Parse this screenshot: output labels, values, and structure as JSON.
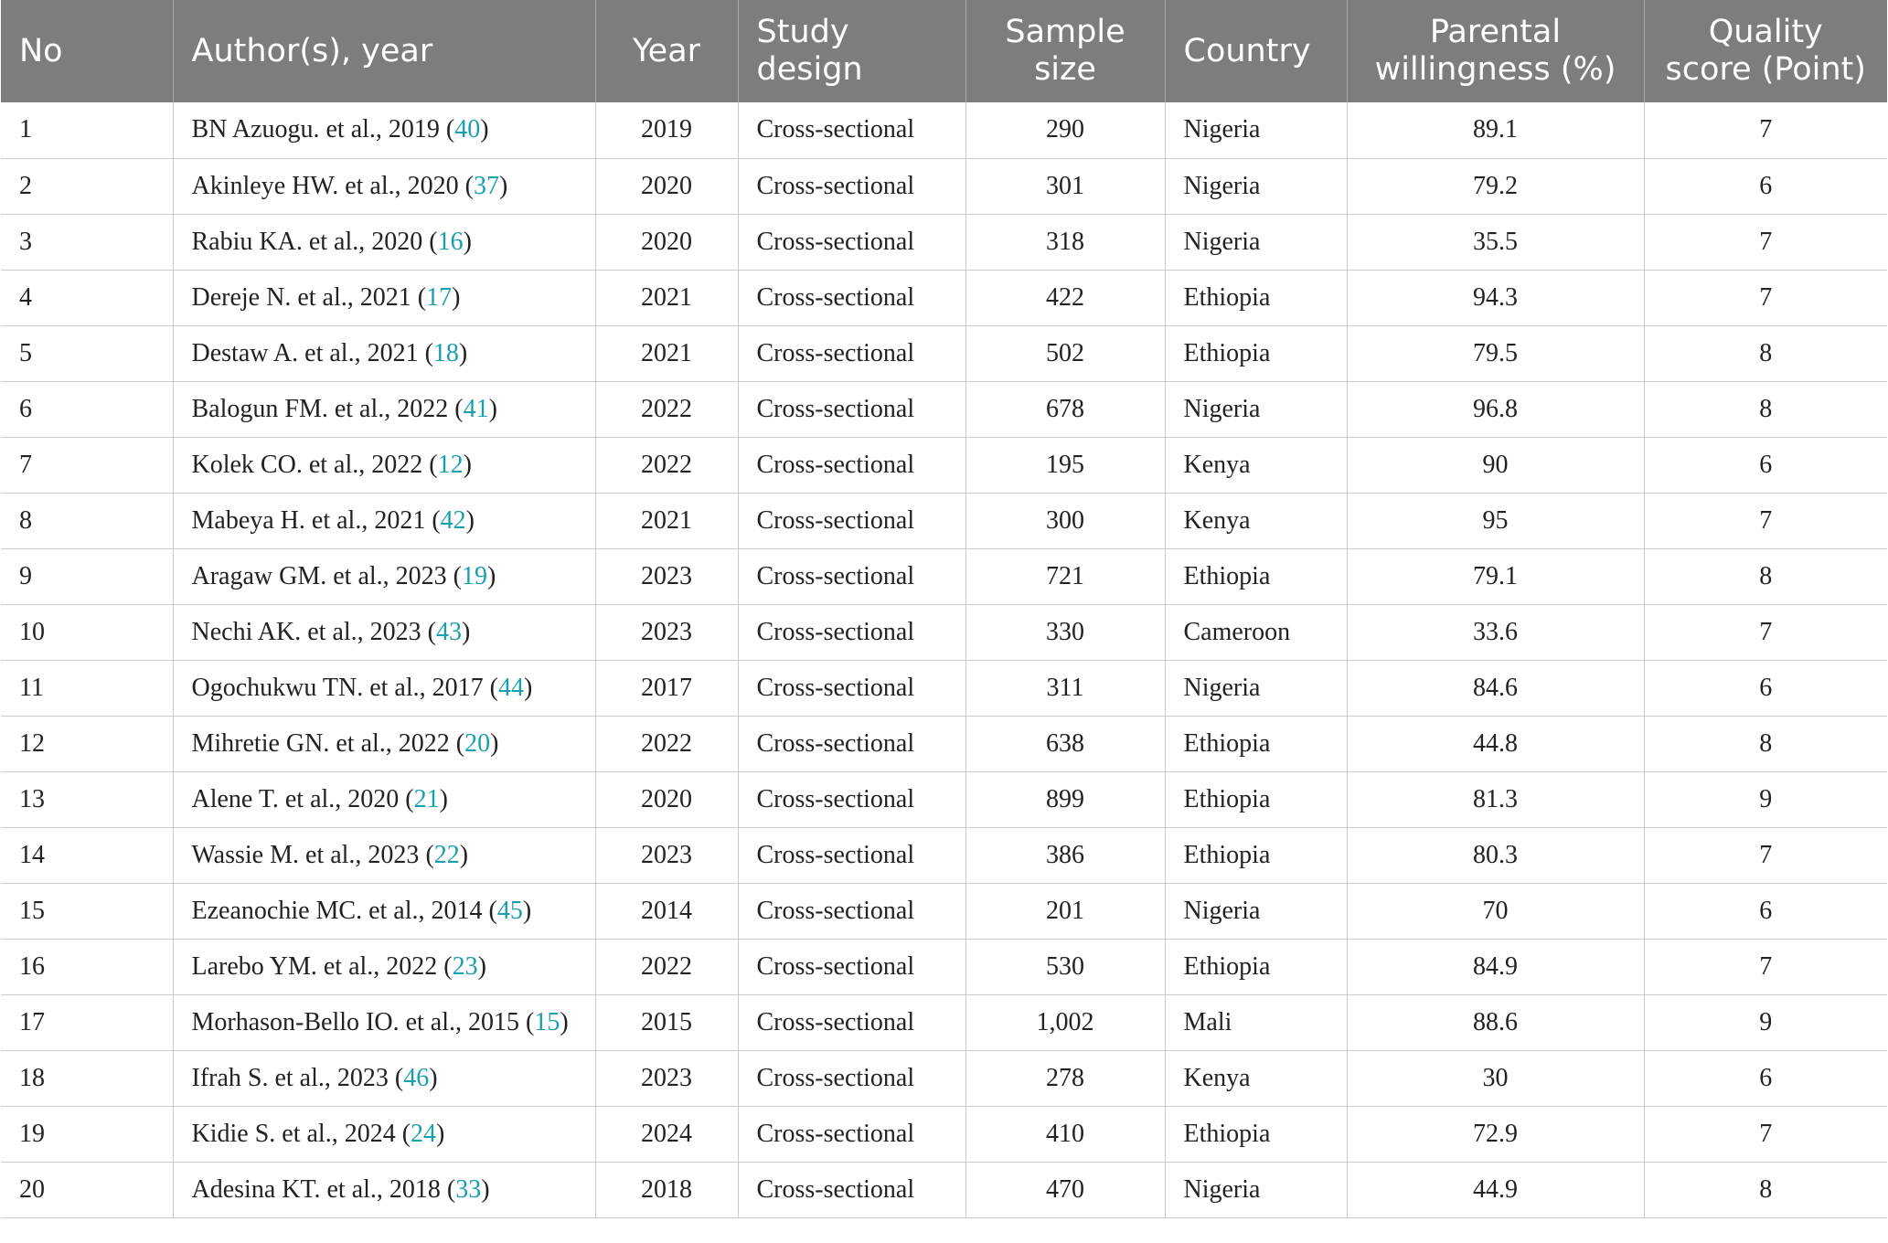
{
  "headers": {
    "no": "No",
    "author": "Author(s), year",
    "year": "Year",
    "design": [
      "Study",
      "design"
    ],
    "sample": [
      "Sample",
      "size"
    ],
    "country": "Country",
    "willingness": [
      "Parental",
      "willingness (%)"
    ],
    "quality": [
      "Quality",
      "score (Point)"
    ]
  },
  "rows": [
    {
      "no": "1",
      "author": "BN Azuogu. et al., 2019",
      "ref": "40",
      "year": "2019",
      "design": "Cross-sectional",
      "sample": "290",
      "country": "Nigeria",
      "willingness": "89.1",
      "quality": "7"
    },
    {
      "no": "2",
      "author": "Akinleye HW. et al., 2020",
      "ref": "37",
      "year": "2020",
      "design": "Cross-sectional",
      "sample": "301",
      "country": "Nigeria",
      "willingness": "79.2",
      "quality": "6"
    },
    {
      "no": "3",
      "author": "Rabiu KA. et al., 2020",
      "ref": "16",
      "year": "2020",
      "design": "Cross-sectional",
      "sample": "318",
      "country": "Nigeria",
      "willingness": "35.5",
      "quality": "7"
    },
    {
      "no": "4",
      "author": "Dereje N. et al., 2021",
      "ref": "17",
      "year": "2021",
      "design": "Cross-sectional",
      "sample": "422",
      "country": "Ethiopia",
      "willingness": "94.3",
      "quality": "7"
    },
    {
      "no": "5",
      "author": "Destaw A. et al., 2021",
      "ref": "18",
      "year": "2021",
      "design": "Cross-sectional",
      "sample": "502",
      "country": "Ethiopia",
      "willingness": "79.5",
      "quality": "8"
    },
    {
      "no": "6",
      "author": "Balogun FM. et al., 2022",
      "ref": "41",
      "year": "2022",
      "design": "Cross-sectional",
      "sample": "678",
      "country": "Nigeria",
      "willingness": "96.8",
      "quality": "8"
    },
    {
      "no": "7",
      "author": "Kolek CO. et al., 2022",
      "ref": "12",
      "year": "2022",
      "design": "Cross-sectional",
      "sample": "195",
      "country": "Kenya",
      "willingness": "90",
      "quality": "6"
    },
    {
      "no": "8",
      "author": "Mabeya H. et al., 2021",
      "ref": "42",
      "year": "2021",
      "design": "Cross-sectional",
      "sample": "300",
      "country": "Kenya",
      "willingness": "95",
      "quality": "7"
    },
    {
      "no": "9",
      "author": "Aragaw GM. et al., 2023",
      "ref": "19",
      "year": "2023",
      "design": "Cross-sectional",
      "sample": "721",
      "country": "Ethiopia",
      "willingness": "79.1",
      "quality": "8"
    },
    {
      "no": "10",
      "author": "Nechi AK. et al., 2023",
      "ref": "43",
      "year": "2023",
      "design": "Cross-sectional",
      "sample": "330",
      "country": "Cameroon",
      "willingness": "33.6",
      "quality": "7"
    },
    {
      "no": "11",
      "author": "Ogochukwu TN. et al., 2017",
      "ref": "44",
      "year": "2017",
      "design": "Cross-sectional",
      "sample": "311",
      "country": "Nigeria",
      "willingness": "84.6",
      "quality": "6"
    },
    {
      "no": "12",
      "author": "Mihretie GN. et al., 2022",
      "ref": "20",
      "year": "2022",
      "design": "Cross-sectional",
      "sample": "638",
      "country": "Ethiopia",
      "willingness": "44.8",
      "quality": "8"
    },
    {
      "no": "13",
      "author": "Alene T. et al., 2020",
      "ref": "21",
      "year": "2020",
      "design": "Cross-sectional",
      "sample": "899",
      "country": "Ethiopia",
      "willingness": "81.3",
      "quality": "9"
    },
    {
      "no": "14",
      "author": "Wassie M. et al., 2023",
      "ref": "22",
      "year": "2023",
      "design": "Cross-sectional",
      "sample": "386",
      "country": "Ethiopia",
      "willingness": "80.3",
      "quality": "7"
    },
    {
      "no": "15",
      "author": "Ezeanochie MC. et al., 2014",
      "ref": "45",
      "year": "2014",
      "design": "Cross-sectional",
      "sample": "201",
      "country": "Nigeria",
      "willingness": "70",
      "quality": "6"
    },
    {
      "no": "16",
      "author": "Larebo YM. et al., 2022",
      "ref": "23",
      "year": "2022",
      "design": "Cross-sectional",
      "sample": "530",
      "country": "Ethiopia",
      "willingness": "84.9",
      "quality": "7"
    },
    {
      "no": "17",
      "author": "Morhason-Bello IO. et al., 2015",
      "ref": "15",
      "year": "2015",
      "design": "Cross-sectional",
      "sample": "1,002",
      "country": "Mali",
      "willingness": "88.6",
      "quality": "9"
    },
    {
      "no": "18",
      "author": "Ifrah S. et al., 2023",
      "ref": "46",
      "year": "2023",
      "design": "Cross-sectional",
      "sample": "278",
      "country": "Kenya",
      "willingness": "30",
      "quality": "6"
    },
    {
      "no": "19",
      "author": "Kidie S. et al., 2024",
      "ref": "24",
      "year": "2024",
      "design": "Cross-sectional",
      "sample": "410",
      "country": "Ethiopia",
      "willingness": "72.9",
      "quality": "7"
    },
    {
      "no": "20",
      "author": "Adesina KT. et al., 2018",
      "ref": "33",
      "year": "2018",
      "design": "Cross-sectional",
      "sample": "470",
      "country": "Nigeria",
      "willingness": "44.9",
      "quality": "8"
    }
  ]
}
